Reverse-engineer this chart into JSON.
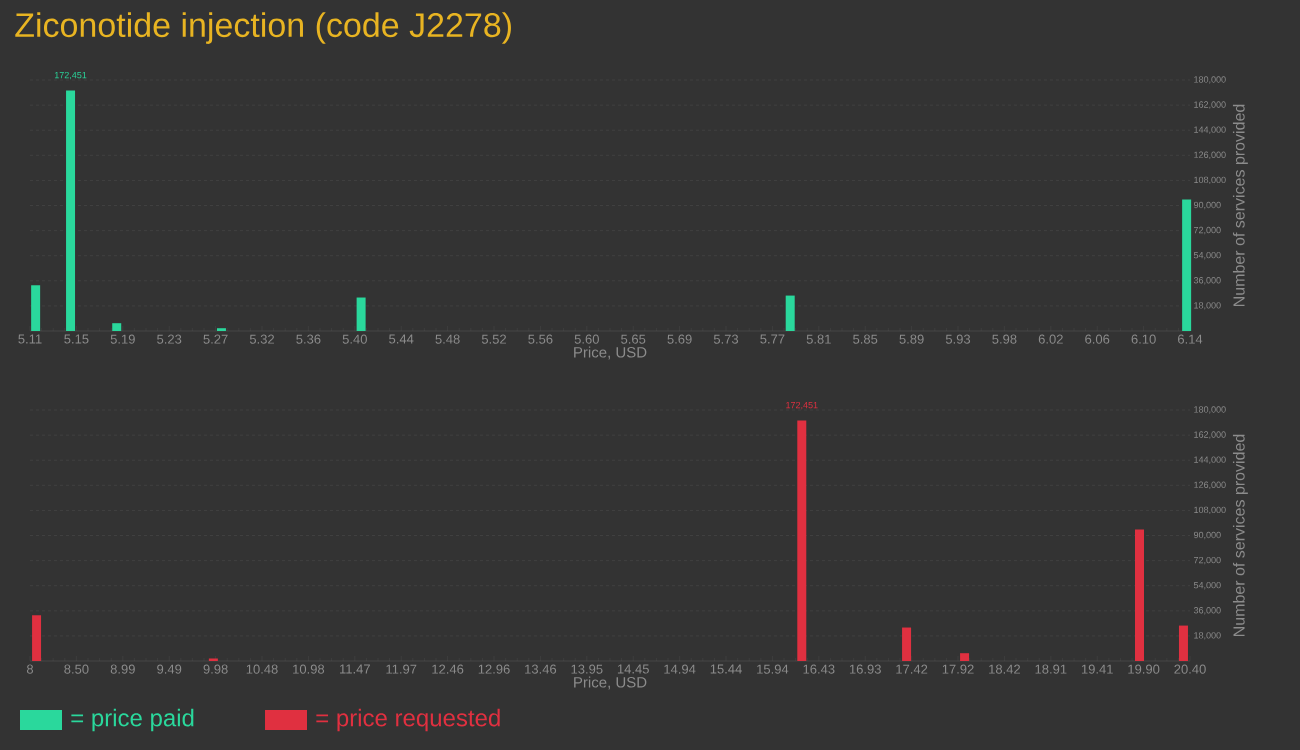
{
  "chart_data": [
    {
      "type": "bar",
      "title": "Ziconotide injection (code J2278)",
      "xlabel": "Price, USD",
      "ylabel": "Number of services provided",
      "grid": "y",
      "legend": "bottom left",
      "x": [
        5.115,
        5.146,
        5.187,
        5.28,
        5.404,
        5.785,
        6.137
      ],
      "series": [
        {
          "name": "= price paid",
          "color": "#2ad89c",
          "values": [
            32800,
            172451,
            5600,
            2000,
            24000,
            25400,
            94300
          ],
          "value_labels": [
            null,
            "172,451",
            null,
            null,
            null,
            null,
            null
          ]
        }
      ],
      "xlim": [
        5.11,
        6.14
      ],
      "xticks": [
        {
          "value": 5.11,
          "label": "5.11"
        },
        {
          "value": 5.1512,
          "label": "5.15"
        },
        {
          "value": 5.1924,
          "label": "5.19"
        },
        {
          "value": 5.2336,
          "label": "5.23"
        },
        {
          "value": 5.2748,
          "label": "5.27"
        },
        {
          "value": 5.316,
          "label": "5.32"
        },
        {
          "value": 5.3572,
          "label": "5.36"
        },
        {
          "value": 5.3984,
          "label": "5.40"
        },
        {
          "value": 5.4396,
          "label": "5.44"
        },
        {
          "value": 5.4808,
          "label": "5.48"
        },
        {
          "value": 5.522,
          "label": "5.52"
        },
        {
          "value": 5.5632,
          "label": "5.56"
        },
        {
          "value": 5.6044,
          "label": "5.60"
        },
        {
          "value": 5.6456,
          "label": "5.65"
        },
        {
          "value": 5.6868,
          "label": "5.69"
        },
        {
          "value": 5.728,
          "label": "5.73"
        },
        {
          "value": 5.7692,
          "label": "5.77"
        },
        {
          "value": 5.8104,
          "label": "5.81"
        },
        {
          "value": 5.8516,
          "label": "5.85"
        },
        {
          "value": 5.8928,
          "label": "5.89"
        },
        {
          "value": 5.934,
          "label": "5.93"
        },
        {
          "value": 5.9752,
          "label": "5.98"
        },
        {
          "value": 6.0164,
          "label": "6.02"
        },
        {
          "value": 6.0576,
          "label": "6.06"
        },
        {
          "value": 6.0988,
          "label": "6.10"
        },
        {
          "value": 6.14,
          "label": "6.14"
        }
      ],
      "ylim": [
        0,
        180000
      ],
      "yticks": [
        {
          "value": 18000,
          "label": "18,000"
        },
        {
          "value": 36000,
          "label": "36,000"
        },
        {
          "value": 54000,
          "label": "54,000"
        },
        {
          "value": 72000,
          "label": "72,000"
        },
        {
          "value": 90000,
          "label": "90,000"
        },
        {
          "value": 108000,
          "label": "108,000"
        },
        {
          "value": 126000,
          "label": "126,000"
        },
        {
          "value": 144000,
          "label": "144,000"
        },
        {
          "value": 162000,
          "label": "162,000"
        },
        {
          "value": 180000,
          "label": "180,000"
        }
      ]
    },
    {
      "type": "bar",
      "xlabel": "Price, USD",
      "ylabel": "Number of services provided",
      "grid": "y",
      "legend": "bottom left",
      "x": [
        8.07,
        9.96,
        16.25,
        17.37,
        17.99,
        19.86,
        20.33
      ],
      "series": [
        {
          "name": "= price requested",
          "color": "#e03040",
          "values": [
            32800,
            1800,
            172451,
            24000,
            5600,
            94300,
            25400
          ],
          "value_labels": [
            null,
            null,
            "172,451",
            null,
            null,
            null,
            null
          ]
        }
      ],
      "xlim": [
        8,
        20.4
      ],
      "xticks": [
        {
          "value": 8,
          "label": "8"
        },
        {
          "value": 8.496,
          "label": "8.50"
        },
        {
          "value": 8.992,
          "label": "8.99"
        },
        {
          "value": 9.488,
          "label": "9.49"
        },
        {
          "value": 9.984,
          "label": "9.98"
        },
        {
          "value": 10.48,
          "label": "10.48"
        },
        {
          "value": 10.976,
          "label": "10.98"
        },
        {
          "value": 11.472,
          "label": "11.47"
        },
        {
          "value": 11.968,
          "label": "11.97"
        },
        {
          "value": 12.464,
          "label": "12.46"
        },
        {
          "value": 12.96,
          "label": "12.96"
        },
        {
          "value": 13.456,
          "label": "13.46"
        },
        {
          "value": 13.952,
          "label": "13.95"
        },
        {
          "value": 14.448,
          "label": "14.45"
        },
        {
          "value": 14.944,
          "label": "14.94"
        },
        {
          "value": 15.44,
          "label": "15.44"
        },
        {
          "value": 15.936,
          "label": "15.94"
        },
        {
          "value": 16.432,
          "label": "16.43"
        },
        {
          "value": 16.928,
          "label": "16.93"
        },
        {
          "value": 17.424,
          "label": "17.42"
        },
        {
          "value": 17.92,
          "label": "17.92"
        },
        {
          "value": 18.416,
          "label": "18.42"
        },
        {
          "value": 18.912,
          "label": "18.91"
        },
        {
          "value": 19.408,
          "label": "19.41"
        },
        {
          "value": 19.904,
          "label": "19.90"
        },
        {
          "value": 20.4,
          "label": "20.40"
        }
      ],
      "ylim": [
        0,
        180000
      ],
      "yticks": [
        {
          "value": 18000,
          "label": "18,000"
        },
        {
          "value": 36000,
          "label": "36,000"
        },
        {
          "value": 54000,
          "label": "54,000"
        },
        {
          "value": 72000,
          "label": "72,000"
        },
        {
          "value": 90000,
          "label": "90,000"
        },
        {
          "value": 108000,
          "label": "108,000"
        },
        {
          "value": 126000,
          "label": "126,000"
        },
        {
          "value": 144000,
          "label": "144,000"
        },
        {
          "value": 162000,
          "label": "162,000"
        },
        {
          "value": 180000,
          "label": "180,000"
        }
      ]
    }
  ]
}
